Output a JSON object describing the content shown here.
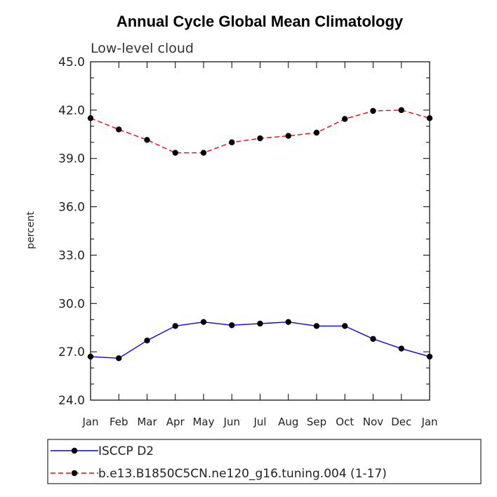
{
  "chart_data": {
    "type": "line",
    "title": "Annual Cycle Global Mean Climatology",
    "subtitle": "Low-level cloud",
    "xlabel": "",
    "ylabel": "percent",
    "ylim": [
      24.0,
      45.0
    ],
    "yticks": [
      "24.0",
      "27.0",
      "30.0",
      "33.0",
      "36.0",
      "39.0",
      "42.0",
      "45.0"
    ],
    "categories": [
      "Jan",
      "Feb",
      "Mar",
      "Apr",
      "May",
      "Jun",
      "Jul",
      "Aug",
      "Sep",
      "Oct",
      "Nov",
      "Dec",
      "Jan"
    ],
    "grid": false,
    "legend_position": "bottom",
    "series": [
      {
        "name": "ISCCP D2",
        "color": "#0000ff",
        "dash": "solid",
        "values": [
          26.7,
          26.6,
          27.7,
          28.6,
          28.85,
          28.65,
          28.75,
          28.85,
          28.6,
          28.6,
          27.8,
          27.2,
          26.7
        ]
      },
      {
        "name": "b.e13.B1850C5CN.ne120_g16.tuning.004 (1-17)",
        "color": "#ff0000",
        "dash": "dashed",
        "values": [
          41.5,
          40.8,
          40.15,
          39.35,
          39.35,
          40.0,
          40.25,
          40.4,
          40.6,
          41.45,
          41.95,
          42.0,
          41.5
        ]
      }
    ]
  }
}
